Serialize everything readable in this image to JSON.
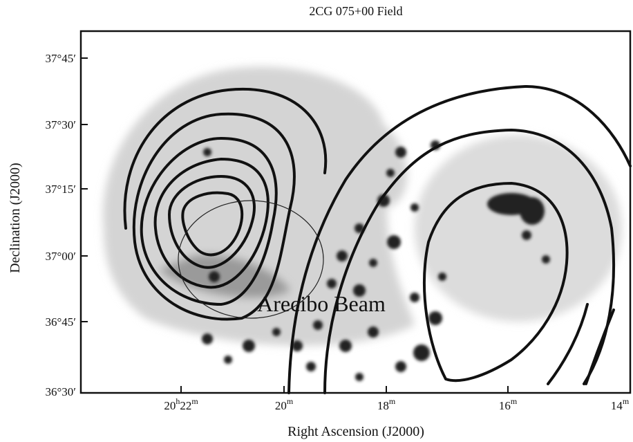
{
  "figure": {
    "title": "2CG 075+00 Field",
    "x_axis": {
      "label": "Right Ascension (J2000)",
      "ticks": [
        [
          "20",
          "h",
          "22",
          "m"
        ],
        [
          "20",
          "m"
        ],
        [
          "18",
          "m"
        ],
        [
          "16",
          "m"
        ],
        [
          "14",
          "m"
        ]
      ]
    },
    "y_axis": {
      "label": "Declination (J2000)",
      "ticks": [
        "37°45′",
        "37°30′",
        "37°15′",
        "37°00′",
        "36°45′",
        "36°30′"
      ]
    },
    "annotation": "Arecibo Beam"
  }
}
